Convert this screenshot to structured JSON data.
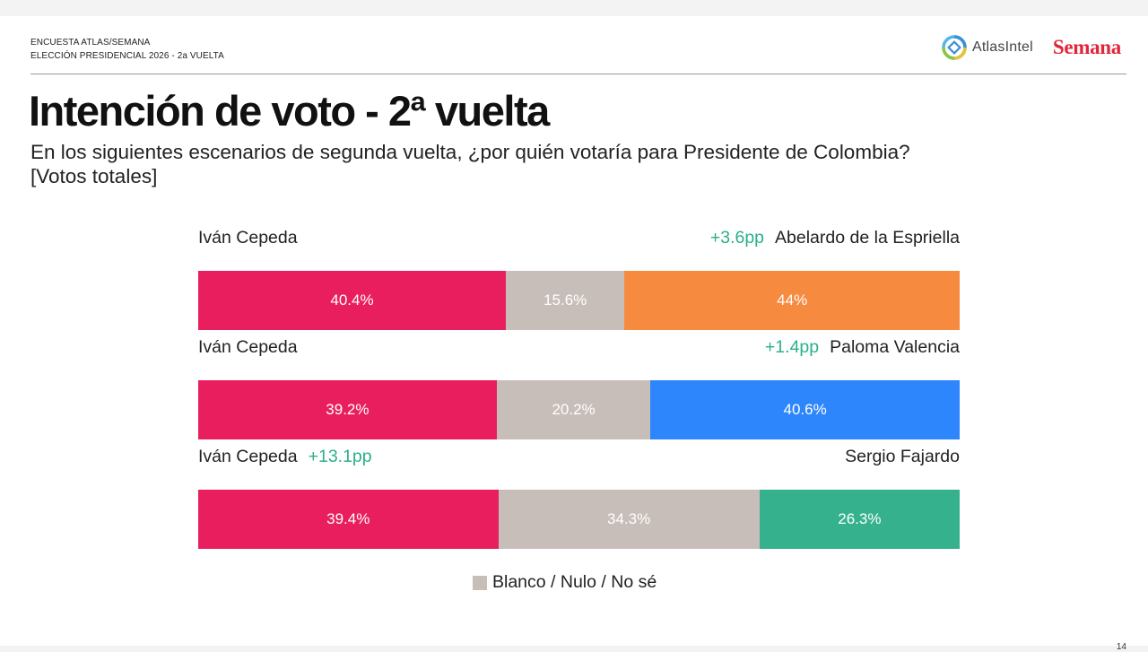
{
  "header": {
    "kicker_line1": "ENCUESTA ATLAS/SEMANA",
    "kicker_line2": "ELECCIÓN PRESIDENCIAL 2026 - 2a VUELTA",
    "logo_atlas": "AtlasIntel",
    "logo_semana": "Semana"
  },
  "title": "Intención de voto - 2ª vuelta",
  "subtitle_line1": "En los siguientes escenarios de segunda vuelta, ¿por quién votaría para Presidente de Colombia?",
  "subtitle_line2": "[Votos totales]",
  "page_number": "14",
  "colors": {
    "cepeda": "#e91e5e",
    "blank": "#c8beb9",
    "espriella": "#f68a3f",
    "valencia": "#2d86fb",
    "fajardo": "#35b28d",
    "lead": "#2bb08c"
  },
  "chart_data": {
    "type": "bar",
    "orientation": "horizontal-stacked-100",
    "legend": {
      "label": "Blanco / Nulo / No sé",
      "placement": "bottom-center"
    },
    "scenarios": [
      {
        "left_name": "Iván Cepeda",
        "right_name": "Abelardo de la Espriella",
        "lead_text": "+3.6pp",
        "lead_side": "right",
        "segments": [
          {
            "name": "Iván Cepeda",
            "value": 40.4,
            "label": "40.4%",
            "color": "#e91e5e"
          },
          {
            "name": "Blanco / Nulo / No sé",
            "value": 15.6,
            "label": "15.6%",
            "color": "#c8beb9"
          },
          {
            "name": "Abelardo de la Espriella",
            "value": 44.0,
            "label": "44%",
            "color": "#f68a3f"
          }
        ]
      },
      {
        "left_name": "Iván Cepeda",
        "right_name": "Paloma Valencia",
        "lead_text": "+1.4pp",
        "lead_side": "right",
        "segments": [
          {
            "name": "Iván Cepeda",
            "value": 39.2,
            "label": "39.2%",
            "color": "#e91e5e"
          },
          {
            "name": "Blanco / Nulo / No sé",
            "value": 20.2,
            "label": "20.2%",
            "color": "#c8beb9"
          },
          {
            "name": "Paloma Valencia",
            "value": 40.6,
            "label": "40.6%",
            "color": "#2d86fb"
          }
        ]
      },
      {
        "left_name": "Iván Cepeda",
        "right_name": "Sergio Fajardo",
        "lead_text": "+13.1pp",
        "lead_side": "left",
        "segments": [
          {
            "name": "Iván Cepeda",
            "value": 39.4,
            "label": "39.4%",
            "color": "#e91e5e"
          },
          {
            "name": "Blanco / Nulo / No sé",
            "value": 34.3,
            "label": "34.3%",
            "color": "#c8beb9"
          },
          {
            "name": "Sergio Fajardo",
            "value": 26.3,
            "label": "26.3%",
            "color": "#35b28d"
          }
        ]
      }
    ]
  }
}
